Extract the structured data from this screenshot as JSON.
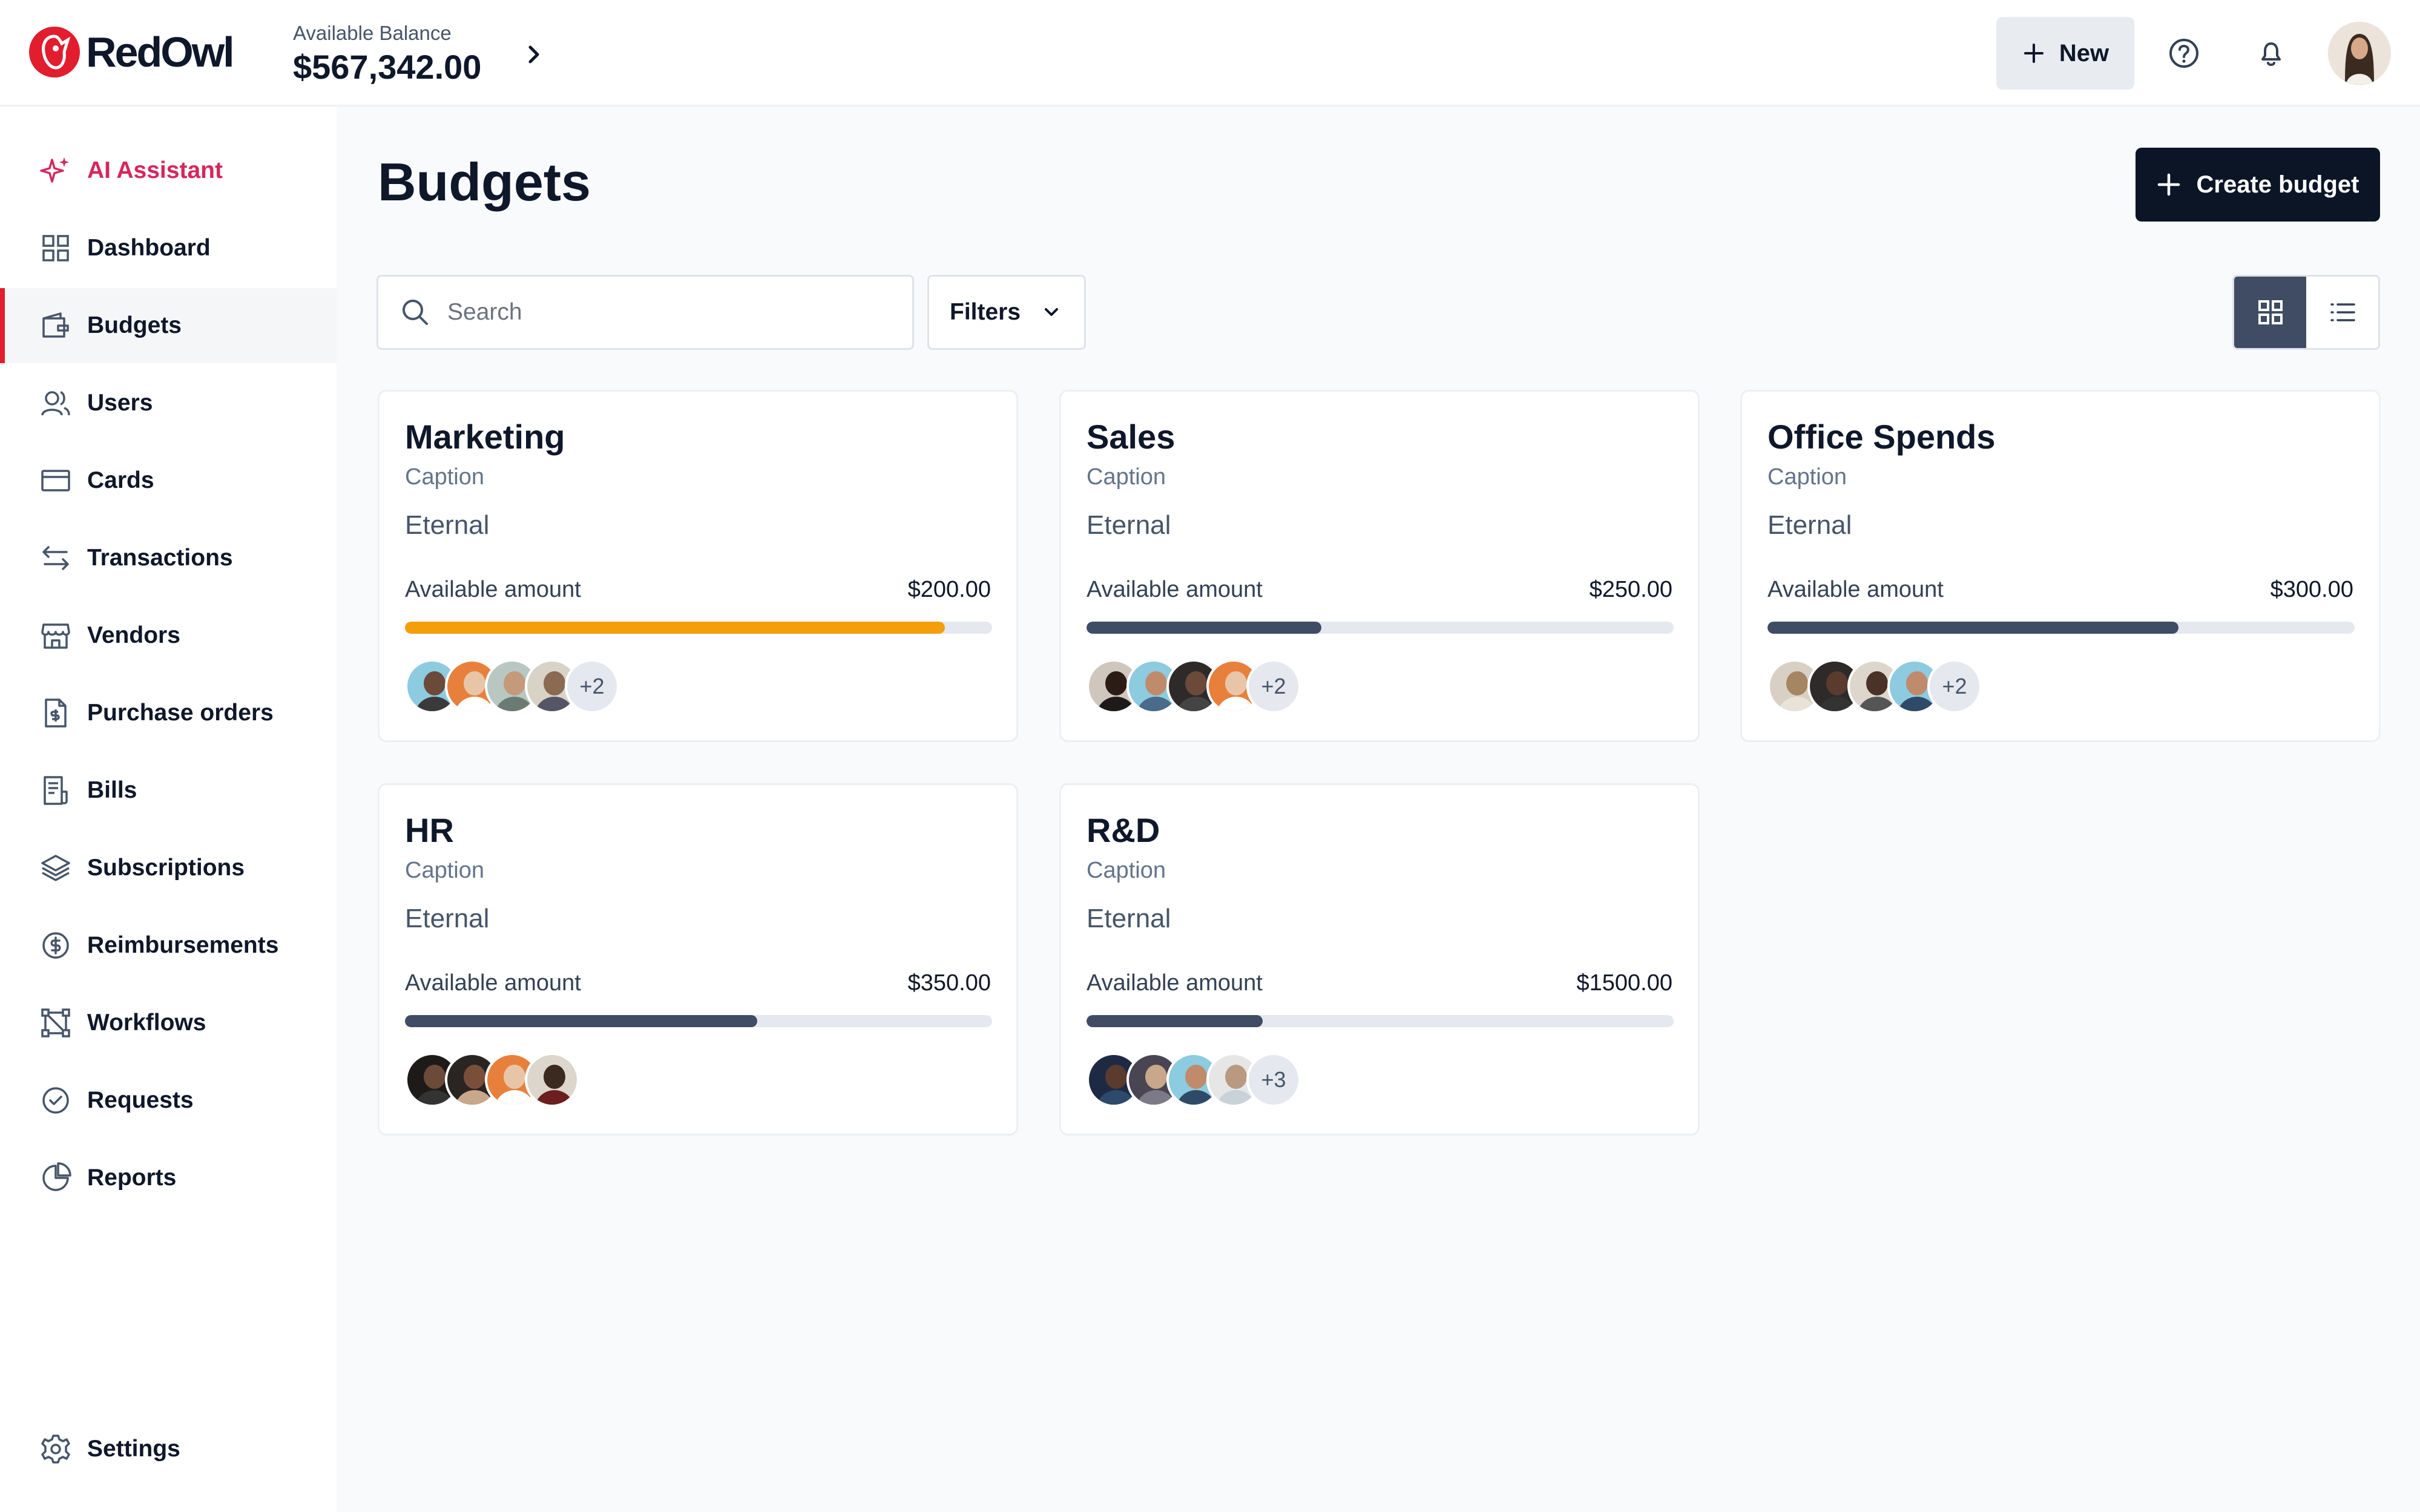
{
  "app": {
    "name": "RedOwl"
  },
  "header": {
    "balance_label": "Available Balance",
    "balance_value": "$567,342.00",
    "new_label": "New"
  },
  "sidebar": {
    "items": [
      {
        "label": "AI Assistant",
        "icon": "sparkles-icon"
      },
      {
        "label": "Dashboard",
        "icon": "grid-icon"
      },
      {
        "label": "Budgets",
        "icon": "wallet-icon",
        "active": true
      },
      {
        "label": "Users",
        "icon": "users-icon"
      },
      {
        "label": "Cards",
        "icon": "card-icon"
      },
      {
        "label": "Transactions",
        "icon": "arrows-icon"
      },
      {
        "label": "Vendors",
        "icon": "store-icon"
      },
      {
        "label": "Purchase orders",
        "icon": "document-dollar-icon"
      },
      {
        "label": "Bills",
        "icon": "bill-icon"
      },
      {
        "label": "Subscriptions",
        "icon": "layers-icon"
      },
      {
        "label": "Reimbursements",
        "icon": "coin-icon"
      },
      {
        "label": "Workflows",
        "icon": "workflow-icon"
      },
      {
        "label": "Requests",
        "icon": "check-circle-icon"
      },
      {
        "label": "Reports",
        "icon": "pie-chart-icon"
      }
    ],
    "settings_label": "Settings"
  },
  "main": {
    "title": "Budgets",
    "create_label": "Create budget",
    "search_placeholder": "Search",
    "filters_label": "Filters",
    "view_mode": "grid"
  },
  "budgets": [
    {
      "title": "Marketing",
      "caption": "Caption",
      "period": "Eternal",
      "avail_label": "Available amount",
      "amount": "$200.00",
      "progress": 0.92,
      "bar_color": "#f59e0b",
      "extra": "+2"
    },
    {
      "title": "Sales",
      "caption": "Caption",
      "period": "Eternal",
      "avail_label": "Available amount",
      "amount": "$250.00",
      "progress": 0.4,
      "bar_color": "#3f4c63",
      "extra": "+2"
    },
    {
      "title": "Office Spends",
      "caption": "Caption",
      "period": "Eternal",
      "avail_label": "Available amount",
      "amount": "$300.00",
      "progress": 0.7,
      "bar_color": "#3f4c63",
      "extra": "+2"
    },
    {
      "title": "HR",
      "caption": "Caption",
      "period": "Eternal",
      "avail_label": "Available amount",
      "amount": "$350.00",
      "progress": 0.6,
      "bar_color": "#3f4c63",
      "extra": ""
    },
    {
      "title": "R&D",
      "caption": "Caption",
      "period": "Eternal",
      "avail_label": "Available amount",
      "amount": "$1500.00",
      "progress": 0.3,
      "bar_color": "#3f4c63",
      "extra": "+3"
    }
  ]
}
